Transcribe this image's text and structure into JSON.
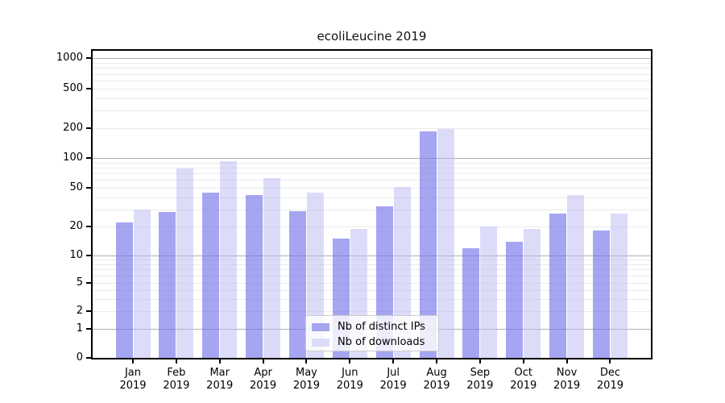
{
  "title": "ecoliLeucine 2019",
  "chart_data": {
    "type": "bar",
    "title": "ecoliLeucine 2019",
    "categories": [
      "Jan",
      "Feb",
      "Mar",
      "Apr",
      "May",
      "Jun",
      "Jul",
      "Aug",
      "Sep",
      "Oct",
      "Nov",
      "Dec"
    ],
    "category_sublabel": "2019",
    "series": [
      {
        "name": "Nb of distinct IPs",
        "color": "rgba(117,117,234,0.65)",
        "swatch_color": "#a5a5f1",
        "values": [
          22,
          28,
          45,
          42,
          29,
          15,
          32,
          185,
          12,
          14,
          27,
          18
        ]
      },
      {
        "name": "Nb of downloads",
        "color": "rgba(185,185,243,0.5)",
        "swatch_color": "#dcdcf9",
        "values": [
          30,
          78,
          93,
          63,
          45,
          19,
          51,
          195,
          20,
          19,
          42,
          27
        ]
      }
    ],
    "yscale": "symlog",
    "ylim": [
      0,
      1300
    ],
    "yticks": [
      0,
      1,
      2,
      5,
      10,
      20,
      50,
      100,
      200,
      500,
      1000
    ],
    "major_grid_values": [
      1,
      10,
      100,
      1000
    ],
    "minor_grid_values": [
      2,
      3,
      4,
      5,
      6,
      7,
      8,
      9,
      20,
      30,
      40,
      50,
      60,
      70,
      80,
      90,
      200,
      300,
      400,
      500,
      600,
      700,
      800,
      900
    ],
    "grid_major_color": "#b0b0b0",
    "grid_minor_color": "#ebebeb",
    "legend_position": "lower center",
    "xlabel": "",
    "ylabel": ""
  }
}
